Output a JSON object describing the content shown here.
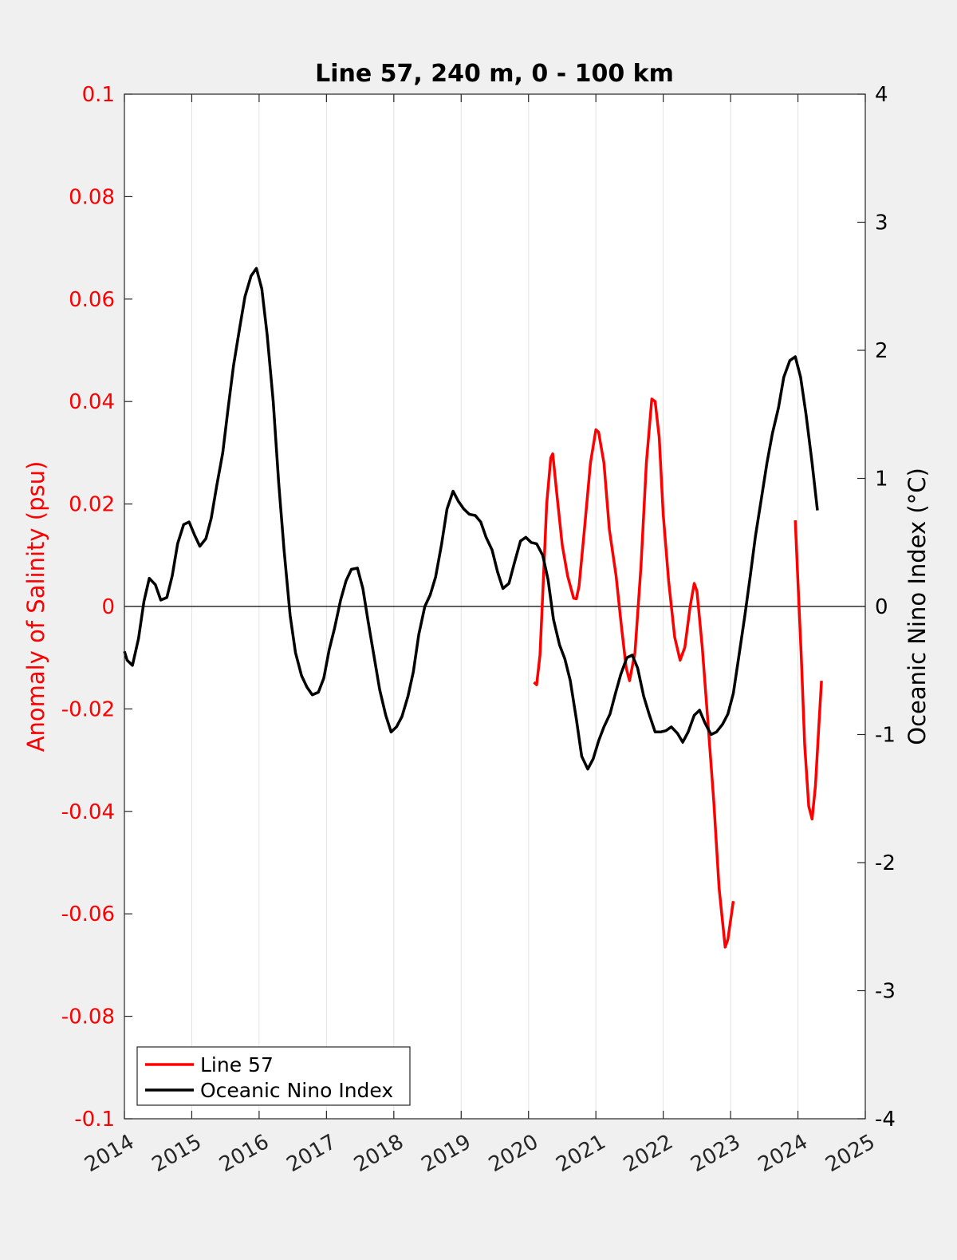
{
  "chart_data": {
    "type": "line",
    "title": "Line 57, 240 m, 0 - 100 km",
    "xlabel": "",
    "ylabel_left": "Anomaly of Salinity (psu)",
    "ylabel_right": "Oceanic Nino Index (°C)",
    "xlim": [
      2014,
      2025
    ],
    "ylim_left": [
      -0.1,
      0.1
    ],
    "ylim_right": [
      -4,
      4
    ],
    "x_ticks": [
      "2014",
      "2015",
      "2016",
      "2017",
      "2018",
      "2019",
      "2020",
      "2021",
      "2022",
      "2023",
      "2024",
      "2025"
    ],
    "y_ticks_left": [
      "0.1",
      "0.08",
      "0.06",
      "0.04",
      "0.02",
      "0",
      "-0.02",
      "-0.04",
      "-0.06",
      "-0.08",
      "-0.1"
    ],
    "y_ticks_right": [
      "4",
      "3",
      "2",
      "1",
      "0",
      "-1",
      "-2",
      "-3",
      "-4"
    ],
    "grid": "vertical",
    "legend_position": "bottom-left",
    "colors": {
      "salinity": "#ff0000",
      "oni": "#000000",
      "left_axis": "#ff0000",
      "right_axis": "#000000"
    },
    "series": [
      {
        "name": "Line 57",
        "axis": "left",
        "segments": [
          [
            [
              2020.08,
              -0.0148
            ],
            [
              2020.12,
              -0.0153
            ],
            [
              2020.17,
              -0.0095
            ],
            [
              2020.22,
              0.005
            ],
            [
              2020.27,
              0.02
            ],
            [
              2020.33,
              0.029
            ],
            [
              2020.36,
              0.0298
            ],
            [
              2020.42,
              0.022
            ],
            [
              2020.5,
              0.012
            ],
            [
              2020.58,
              0.006
            ],
            [
              2020.67,
              0.0016
            ],
            [
              2020.71,
              0.0015
            ],
            [
              2020.75,
              0.004
            ],
            [
              2020.83,
              0.015
            ],
            [
              2020.92,
              0.028
            ],
            [
              2021.0,
              0.0345
            ],
            [
              2021.04,
              0.034
            ],
            [
              2021.12,
              0.028
            ],
            [
              2021.2,
              0.015
            ],
            [
              2021.3,
              0.006
            ],
            [
              2021.38,
              -0.004
            ],
            [
              2021.45,
              -0.012
            ],
            [
              2021.5,
              -0.0145
            ],
            [
              2021.58,
              -0.009
            ],
            [
              2021.67,
              0.008
            ],
            [
              2021.75,
              0.028
            ],
            [
              2021.83,
              0.0405
            ],
            [
              2021.88,
              0.04
            ],
            [
              2021.94,
              0.033
            ],
            [
              2022.0,
              0.018
            ],
            [
              2022.08,
              0.005
            ],
            [
              2022.17,
              -0.006
            ],
            [
              2022.25,
              -0.0105
            ],
            [
              2022.32,
              -0.008
            ],
            [
              2022.4,
              0.0
            ],
            [
              2022.46,
              0.0045
            ],
            [
              2022.5,
              0.003
            ],
            [
              2022.58,
              -0.008
            ],
            [
              2022.66,
              -0.022
            ],
            [
              2022.75,
              -0.038
            ],
            [
              2022.83,
              -0.055
            ],
            [
              2022.92,
              -0.0665
            ],
            [
              2022.96,
              -0.065
            ],
            [
              2023.04,
              -0.0575
            ]
          ],
          [
            [
              2023.96,
              0.0168
            ],
            [
              2024.0,
              0.005
            ],
            [
              2024.05,
              -0.01
            ],
            [
              2024.1,
              -0.027
            ],
            [
              2024.16,
              -0.039
            ],
            [
              2024.21,
              -0.0415
            ],
            [
              2024.26,
              -0.035
            ],
            [
              2024.31,
              -0.0235
            ],
            [
              2024.35,
              -0.0145
            ]
          ]
        ]
      },
      {
        "name": "Oceanic Nino Index",
        "axis": "right",
        "segments": [
          [
            [
              2014.0,
              -0.35
            ],
            [
              2014.04,
              -0.42
            ],
            [
              2014.12,
              -0.46
            ],
            [
              2014.21,
              -0.25
            ],
            [
              2014.29,
              0.04
            ],
            [
              2014.37,
              0.22
            ],
            [
              2014.46,
              0.17
            ],
            [
              2014.54,
              0.05
            ],
            [
              2014.63,
              0.07
            ],
            [
              2014.71,
              0.24
            ],
            [
              2014.79,
              0.49
            ],
            [
              2014.88,
              0.64
            ],
            [
              2014.96,
              0.66
            ],
            [
              2015.04,
              0.56
            ],
            [
              2015.12,
              0.47
            ],
            [
              2015.21,
              0.53
            ],
            [
              2015.29,
              0.69
            ],
            [
              2015.37,
              0.94
            ],
            [
              2015.46,
              1.2
            ],
            [
              2015.54,
              1.55
            ],
            [
              2015.62,
              1.88
            ],
            [
              2015.71,
              2.17
            ],
            [
              2015.79,
              2.42
            ],
            [
              2015.88,
              2.58
            ],
            [
              2015.96,
              2.64
            ],
            [
              2016.04,
              2.48
            ],
            [
              2016.12,
              2.12
            ],
            [
              2016.21,
              1.6
            ],
            [
              2016.29,
              0.97
            ],
            [
              2016.37,
              0.44
            ],
            [
              2016.46,
              -0.07
            ],
            [
              2016.54,
              -0.36
            ],
            [
              2016.63,
              -0.54
            ],
            [
              2016.71,
              -0.63
            ],
            [
              2016.79,
              -0.69
            ],
            [
              2016.88,
              -0.67
            ],
            [
              2016.96,
              -0.56
            ],
            [
              2017.04,
              -0.34
            ],
            [
              2017.12,
              -0.17
            ],
            [
              2017.21,
              0.05
            ],
            [
              2017.29,
              0.2
            ],
            [
              2017.37,
              0.29
            ],
            [
              2017.46,
              0.3
            ],
            [
              2017.54,
              0.14
            ],
            [
              2017.62,
              -0.12
            ],
            [
              2017.71,
              -0.4
            ],
            [
              2017.79,
              -0.65
            ],
            [
              2017.88,
              -0.85
            ],
            [
              2017.96,
              -0.98
            ],
            [
              2018.04,
              -0.94
            ],
            [
              2018.12,
              -0.86
            ],
            [
              2018.21,
              -0.7
            ],
            [
              2018.29,
              -0.51
            ],
            [
              2018.37,
              -0.22
            ],
            [
              2018.46,
              0.0
            ],
            [
              2018.54,
              0.09
            ],
            [
              2018.62,
              0.23
            ],
            [
              2018.71,
              0.49
            ],
            [
              2018.79,
              0.76
            ],
            [
              2018.88,
              0.9
            ],
            [
              2018.96,
              0.82
            ],
            [
              2019.04,
              0.76
            ],
            [
              2019.12,
              0.72
            ],
            [
              2019.21,
              0.71
            ],
            [
              2019.29,
              0.66
            ],
            [
              2019.37,
              0.54
            ],
            [
              2019.46,
              0.44
            ],
            [
              2019.54,
              0.27
            ],
            [
              2019.62,
              0.14
            ],
            [
              2019.71,
              0.18
            ],
            [
              2019.79,
              0.34
            ],
            [
              2019.88,
              0.51
            ],
            [
              2019.96,
              0.54
            ],
            [
              2020.04,
              0.5
            ],
            [
              2020.12,
              0.49
            ],
            [
              2020.21,
              0.4
            ],
            [
              2020.29,
              0.21
            ],
            [
              2020.37,
              -0.1
            ],
            [
              2020.46,
              -0.3
            ],
            [
              2020.54,
              -0.41
            ],
            [
              2020.62,
              -0.58
            ],
            [
              2020.71,
              -0.88
            ],
            [
              2020.79,
              -1.17
            ],
            [
              2020.88,
              -1.27
            ],
            [
              2020.96,
              -1.19
            ],
            [
              2021.04,
              -1.05
            ],
            [
              2021.12,
              -0.94
            ],
            [
              2021.21,
              -0.84
            ],
            [
              2021.29,
              -0.68
            ],
            [
              2021.37,
              -0.53
            ],
            [
              2021.46,
              -0.4
            ],
            [
              2021.54,
              -0.38
            ],
            [
              2021.62,
              -0.48
            ],
            [
              2021.71,
              -0.7
            ],
            [
              2021.79,
              -0.84
            ],
            [
              2021.88,
              -0.98
            ],
            [
              2021.96,
              -0.98
            ],
            [
              2022.04,
              -0.97
            ],
            [
              2022.12,
              -0.94
            ],
            [
              2022.21,
              -0.99
            ],
            [
              2022.29,
              -1.06
            ],
            [
              2022.37,
              -0.98
            ],
            [
              2022.46,
              -0.85
            ],
            [
              2022.54,
              -0.81
            ],
            [
              2022.62,
              -0.91
            ],
            [
              2022.71,
              -1.0
            ],
            [
              2022.79,
              -0.98
            ],
            [
              2022.88,
              -0.92
            ],
            [
              2022.96,
              -0.84
            ],
            [
              2023.04,
              -0.68
            ],
            [
              2023.12,
              -0.4
            ],
            [
              2023.21,
              -0.08
            ],
            [
              2023.29,
              0.23
            ],
            [
              2023.37,
              0.55
            ],
            [
              2023.46,
              0.85
            ],
            [
              2023.54,
              1.12
            ],
            [
              2023.62,
              1.35
            ],
            [
              2023.71,
              1.55
            ],
            [
              2023.79,
              1.79
            ],
            [
              2023.88,
              1.92
            ],
            [
              2023.96,
              1.95
            ],
            [
              2024.04,
              1.79
            ],
            [
              2024.12,
              1.5
            ],
            [
              2024.21,
              1.12
            ],
            [
              2024.29,
              0.75
            ]
          ]
        ]
      }
    ]
  }
}
